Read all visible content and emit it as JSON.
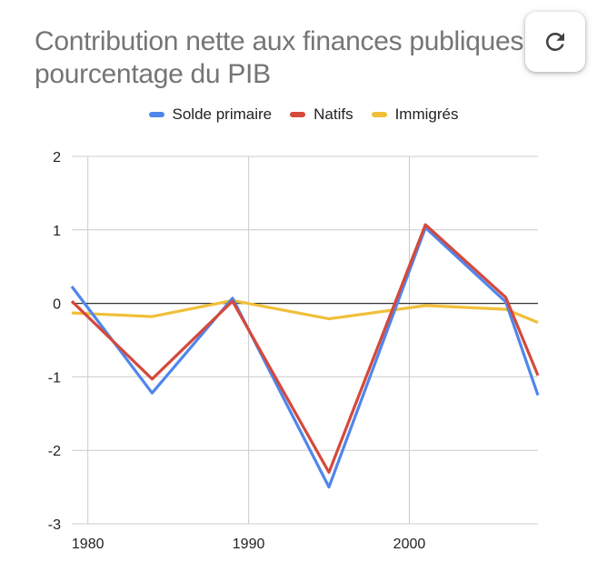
{
  "header": {
    "title_line1": "Contribution nette aux finances publiques",
    "title_line2": "pourcentage du PIB"
  },
  "toolbar": {
    "refresh_icon": "refresh-icon"
  },
  "colors": {
    "solde": "#5086ec",
    "natifs": "#d5493b",
    "immigres": "#f0bf3a",
    "grid": "#cccccc",
    "zero_line": "#333333"
  },
  "chart_data": {
    "type": "line",
    "title": "Contribution nette aux finances publiques pourcentage du PIB",
    "xlabel": "",
    "ylabel": "",
    "xlim": [
      1979,
      2008
    ],
    "ylim": [
      -3,
      2
    ],
    "x_ticks": [
      "1980",
      "1990",
      "2000"
    ],
    "y_ticks": [
      "2",
      "1",
      "0",
      "-1",
      "-2",
      "-3"
    ],
    "grid": true,
    "legend_position": "top",
    "series": [
      {
        "name": "Solde primaire",
        "x": [
          1979,
          1984,
          1989,
          1995,
          2001,
          2006,
          2008
        ],
        "values": [
          0.23,
          -1.22,
          0.07,
          -2.5,
          1.03,
          0.02,
          -1.25
        ]
      },
      {
        "name": "Natifs",
        "x": [
          1979,
          1984,
          1989,
          1995,
          2001,
          2006,
          2008
        ],
        "values": [
          0.03,
          -1.03,
          0.03,
          -2.3,
          1.07,
          0.08,
          -0.98
        ]
      },
      {
        "name": "Immigrés",
        "x": [
          1979,
          1984,
          1989,
          1995,
          2001,
          2006,
          2008
        ],
        "values": [
          -0.13,
          -0.18,
          0.04,
          -0.21,
          -0.03,
          -0.08,
          -0.26
        ]
      }
    ]
  }
}
